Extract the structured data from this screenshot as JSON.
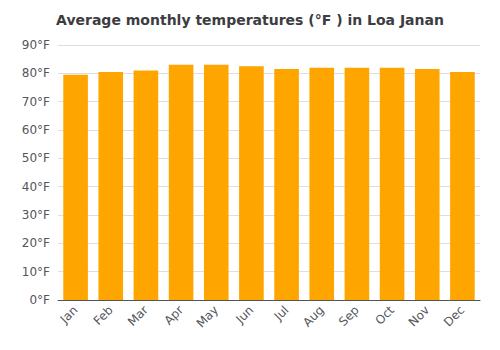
{
  "chart_data": {
    "type": "bar",
    "title": "Average monthly temperatures (°F ) in Loa Janan",
    "categories": [
      "Jan",
      "Feb",
      "Mar",
      "Apr",
      "May",
      "Jun",
      "Jul",
      "Aug",
      "Sep",
      "Oct",
      "Nov",
      "Dec"
    ],
    "values": [
      79.5,
      80.5,
      81.0,
      83.0,
      83.0,
      82.5,
      81.5,
      82.0,
      82.0,
      82.0,
      81.5,
      80.5
    ],
    "color": "#FFA500",
    "ylim": [
      0,
      90
    ],
    "yticks": [
      {
        "value": 0,
        "label": "0°F"
      },
      {
        "value": 10,
        "label": "10°F"
      },
      {
        "value": 20,
        "label": "20°F"
      },
      {
        "value": 30,
        "label": "30°F"
      },
      {
        "value": 40,
        "label": "40°F"
      },
      {
        "value": 50,
        "label": "50°F"
      },
      {
        "value": 60,
        "label": "60°F"
      },
      {
        "value": 70,
        "label": "70°F"
      },
      {
        "value": 80,
        "label": "80°F"
      },
      {
        "value": 90,
        "label": "90°F"
      }
    ],
    "grid": true
  }
}
